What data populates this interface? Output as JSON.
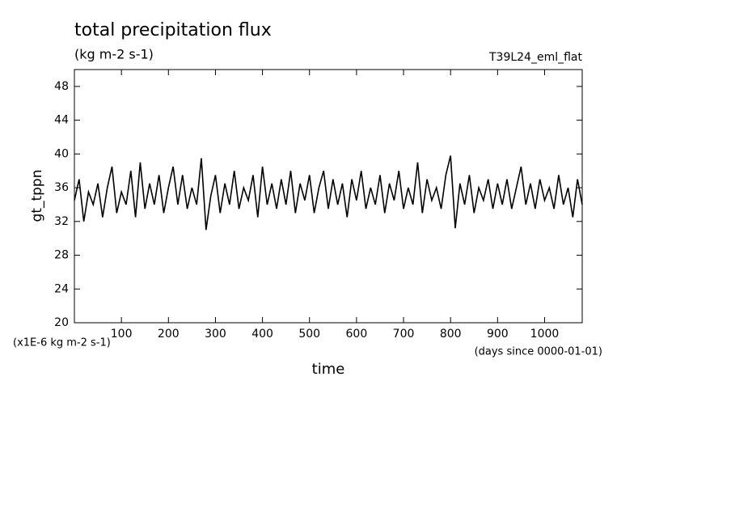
{
  "chart_data": {
    "type": "line",
    "title": "total precipitation flux",
    "subtitle": "(kg m-2 s-1)",
    "annotation": "T39L24_eml_flat",
    "ylabel": "gt_tppn",
    "xlabel": "time",
    "yunit": "(x1E-6 kg m-2 s-1)",
    "xunit": "(days since 0000-01-01)",
    "xlim": [
      0,
      1080
    ],
    "ylim": [
      20,
      50
    ],
    "xticks": [
      100,
      200,
      300,
      400,
      500,
      600,
      700,
      800,
      900,
      1000
    ],
    "yticks": [
      20,
      24,
      28,
      32,
      36,
      40,
      44,
      48
    ],
    "x": [
      0,
      10,
      20,
      30,
      40,
      50,
      60,
      70,
      80,
      90,
      100,
      110,
      120,
      130,
      140,
      150,
      160,
      170,
      180,
      190,
      200,
      210,
      220,
      230,
      240,
      250,
      260,
      270,
      280,
      290,
      300,
      310,
      320,
      330,
      340,
      350,
      360,
      370,
      380,
      390,
      400,
      410,
      420,
      430,
      440,
      450,
      460,
      470,
      480,
      490,
      500,
      510,
      520,
      530,
      540,
      550,
      560,
      570,
      580,
      590,
      600,
      610,
      620,
      630,
      640,
      650,
      660,
      670,
      680,
      690,
      700,
      710,
      720,
      730,
      740,
      750,
      760,
      770,
      780,
      790,
      800,
      810,
      820,
      830,
      840,
      850,
      860,
      870,
      880,
      890,
      900,
      910,
      920,
      930,
      940,
      950,
      960,
      970,
      980,
      990,
      1000,
      1010,
      1020,
      1030,
      1040,
      1050,
      1060,
      1070,
      1080
    ],
    "series": [
      {
        "color": "#000000",
        "values": [
          34.5,
          37,
          32,
          35.5,
          34,
          36.5,
          32.5,
          36,
          38.5,
          33,
          35.5,
          34,
          38,
          32.5,
          39,
          33.5,
          36.5,
          34,
          37.5,
          33,
          36,
          38.5,
          34,
          37.5,
          33.5,
          36,
          34,
          39.5,
          31,
          35,
          37.5,
          33,
          36.5,
          34,
          38,
          33.5,
          36,
          34.5,
          37.5,
          32.5,
          38.5,
          34,
          36.5,
          33.5,
          37,
          34,
          38,
          33,
          36.5,
          34.5,
          37.5,
          33,
          36,
          38,
          33.5,
          37,
          34,
          36.5,
          32.5,
          37,
          34.5,
          38,
          33.5,
          36,
          34,
          37.5,
          33,
          36.5,
          34.5,
          38,
          33.5,
          36,
          34,
          39,
          33,
          37,
          34.5,
          36,
          33.5,
          37.5,
          39.8,
          31.2,
          36.5,
          34,
          37.5,
          33,
          36,
          34.5,
          37,
          33.5,
          36.5,
          34,
          37,
          33.5,
          36,
          38.5,
          34,
          36.5,
          33.5,
          37,
          34.5,
          36,
          33.5,
          37.5,
          34,
          36,
          32.5,
          37,
          34
        ]
      }
    ]
  }
}
